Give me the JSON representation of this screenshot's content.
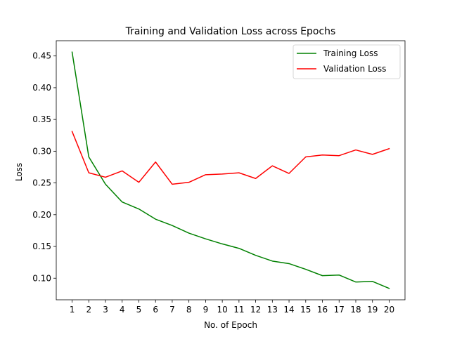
{
  "chart_data": {
    "type": "line",
    "title": "Training and Validation Loss across Epochs",
    "xlabel": "No. of Epoch",
    "ylabel": "Loss",
    "x": [
      1,
      2,
      3,
      4,
      5,
      6,
      7,
      8,
      9,
      10,
      11,
      12,
      13,
      14,
      15,
      16,
      17,
      18,
      19,
      20
    ],
    "xlim": [
      0.05,
      20.95
    ],
    "ylim": [
      0.066,
      0.474
    ],
    "yticks": [
      0.1,
      0.15,
      0.2,
      0.25,
      0.3,
      0.35,
      0.4,
      0.45
    ],
    "ytick_labels": [
      "0.10",
      "0.15",
      "0.20",
      "0.25",
      "0.30",
      "0.35",
      "0.40",
      "0.45"
    ],
    "grid": false,
    "legend_position": "top-right",
    "series": [
      {
        "name": "Training Loss",
        "color": "#008000",
        "values": [
          0.456,
          0.291,
          0.248,
          0.22,
          0.209,
          0.193,
          0.183,
          0.171,
          0.162,
          0.154,
          0.147,
          0.136,
          0.127,
          0.123,
          0.114,
          0.104,
          0.105,
          0.094,
          0.095,
          0.084
        ]
      },
      {
        "name": "Validation Loss",
        "color": "#ff0000",
        "values": [
          0.331,
          0.266,
          0.259,
          0.269,
          0.251,
          0.283,
          0.248,
          0.251,
          0.263,
          0.264,
          0.266,
          0.257,
          0.277,
          0.265,
          0.291,
          0.294,
          0.293,
          0.302,
          0.295,
          0.304
        ]
      }
    ]
  }
}
